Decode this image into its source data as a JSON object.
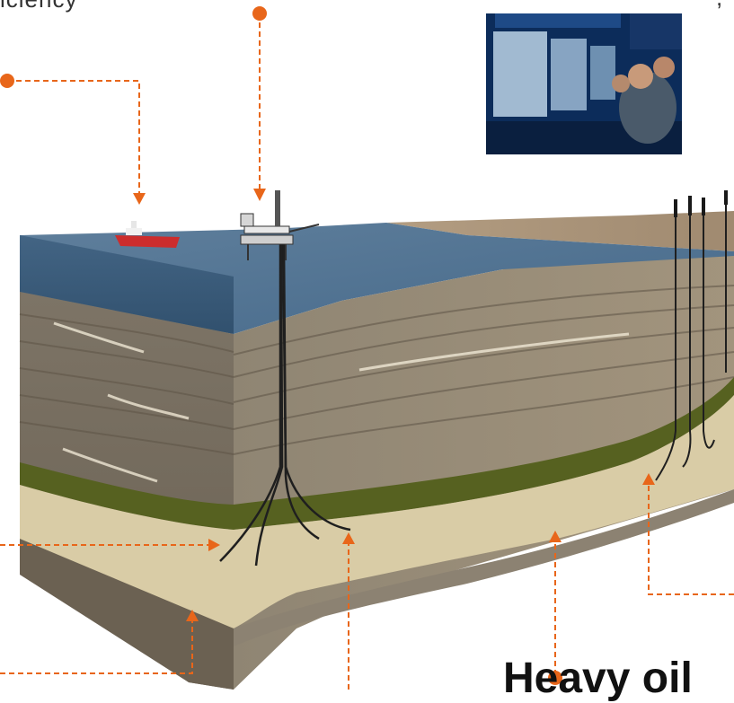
{
  "labels": {
    "top_left_fragment": "iciency",
    "top_right_fragment": ",",
    "bottom_title_fragment": "Heavy oil"
  },
  "colors": {
    "accent": "#e8661a",
    "sea": "#3d5f7c",
    "rock": "#8a7f70",
    "reservoir": "#d7caa3",
    "shale_band": "#4f5a1c"
  },
  "icons": {
    "control_room_photo": "control-room-photo",
    "vessel": "ship-icon",
    "platform": "offshore-platform-icon",
    "rigs": "drilling-rig-icon"
  }
}
